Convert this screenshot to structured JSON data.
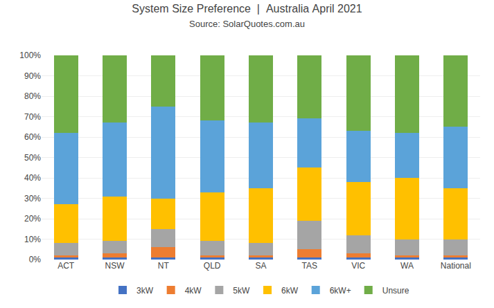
{
  "chart_data": {
    "type": "bar",
    "stacked": true,
    "title": "System Size Preference  |  Australia April 2021",
    "subtitle": "Source: SolarQuotes.com.au",
    "categories": [
      "ACT",
      "NSW",
      "NT",
      "QLD",
      "SA",
      "TAS",
      "VIC",
      "WA",
      "National"
    ],
    "series": [
      {
        "name": "3kW",
        "color": "#4472C4",
        "values": [
          1,
          1,
          1,
          1,
          1,
          1,
          1,
          1,
          1
        ]
      },
      {
        "name": "4kW",
        "color": "#ED7D31",
        "values": [
          1,
          2,
          5,
          1,
          1,
          4,
          2,
          1,
          1
        ]
      },
      {
        "name": "5kW",
        "color": "#A5A5A5",
        "values": [
          6,
          6,
          9,
          7,
          6,
          14,
          9,
          8,
          8
        ]
      },
      {
        "name": "6kW",
        "color": "#FFC000",
        "values": [
          19,
          22,
          15,
          24,
          27,
          26,
          26,
          30,
          25
        ]
      },
      {
        "name": "6kW+",
        "color": "#5BA3D9",
        "values": [
          35,
          36,
          45,
          35,
          32,
          24,
          25,
          22,
          30
        ]
      },
      {
        "name": "Unsure",
        "color": "#70AD47",
        "values": [
          38,
          33,
          25,
          32,
          33,
          31,
          37,
          38,
          35
        ]
      }
    ],
    "ylim": [
      0,
      100
    ],
    "yticks": [
      {
        "value": 0,
        "label": "0%"
      },
      {
        "value": 10,
        "label": "10%"
      },
      {
        "value": 20,
        "label": "20%"
      },
      {
        "value": 30,
        "label": "30%"
      },
      {
        "value": 40,
        "label": "40%"
      },
      {
        "value": 50,
        "label": "50%"
      },
      {
        "value": 60,
        "label": "60%"
      },
      {
        "value": 70,
        "label": "70%"
      },
      {
        "value": 80,
        "label": "80%"
      },
      {
        "value": 90,
        "label": "90%"
      },
      {
        "value": 100,
        "label": "100%"
      }
    ],
    "grid": true,
    "legend": "bottom"
  }
}
